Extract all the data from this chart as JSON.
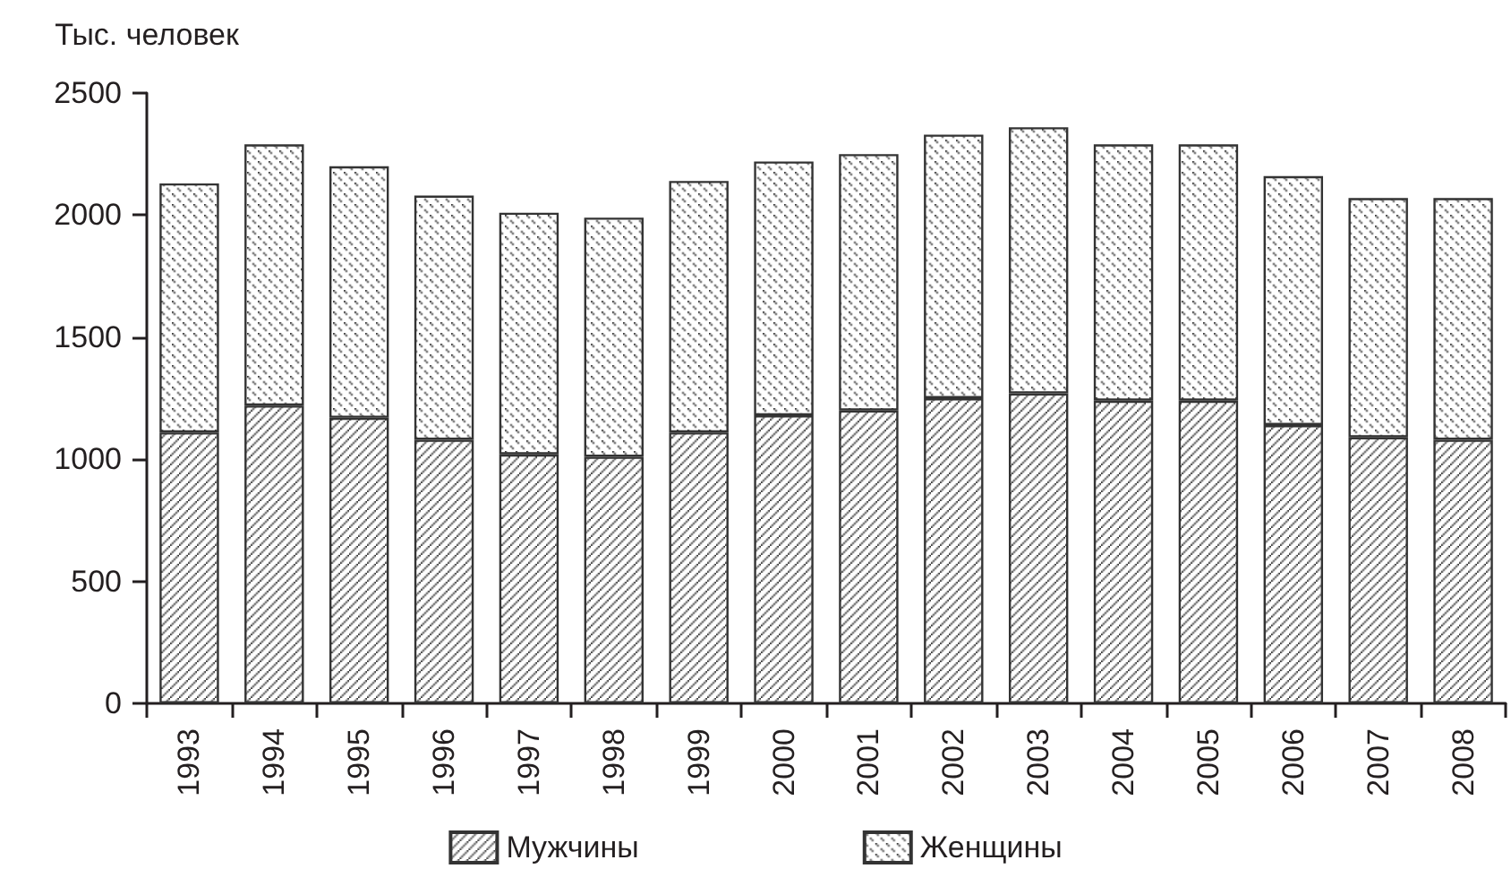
{
  "chart_data": {
    "type": "bar",
    "ylabel": "Тыс. человек",
    "categories": [
      "1993",
      "1994",
      "1995",
      "1996",
      "1997",
      "1998",
      "1999",
      "2000",
      "2001",
      "2002",
      "2003",
      "2004",
      "2005",
      "2006",
      "2007",
      "2008"
    ],
    "stacked": true,
    "series": [
      {
        "name": "Мужчины",
        "color": "#333333",
        "values": [
          1110,
          1220,
          1170,
          1080,
          1020,
          1010,
          1110,
          1180,
          1200,
          1250,
          1270,
          1240,
          1240,
          1140,
          1090,
          1080
        ]
      },
      {
        "name": "Женщины",
        "color": "#333333",
        "values": [
          1020,
          1070,
          1030,
          1000,
          990,
          980,
          1030,
          1040,
          1050,
          1080,
          1090,
          1050,
          1050,
          1020,
          980,
          990
        ]
      }
    ],
    "ylim": [
      0,
      2500
    ],
    "yticks": [
      0,
      500,
      1000,
      1500,
      2000,
      2500
    ],
    "legend": "bottom"
  }
}
